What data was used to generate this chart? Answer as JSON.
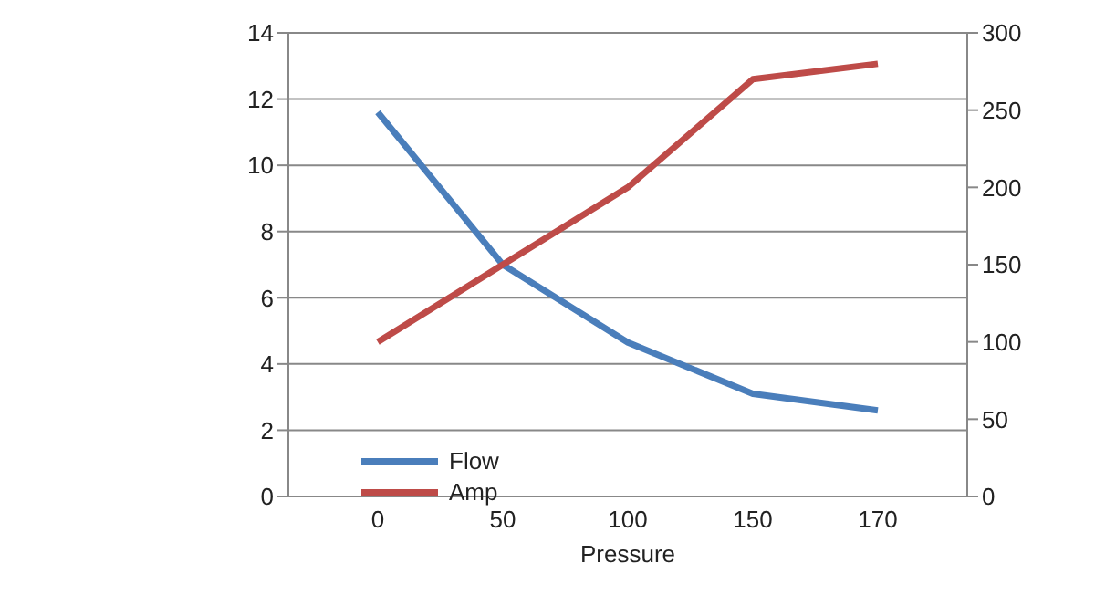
{
  "chart_data": {
    "type": "line",
    "xlabel": "Pressure",
    "categories": [
      "0",
      "50",
      "100",
      "150",
      "170"
    ],
    "series": [
      {
        "name": "Flow",
        "color": "#4a7ebb",
        "values": [
          11.6,
          7.0,
          4.65,
          3.1,
          2.6
        ]
      },
      {
        "name": "Amp",
        "color": "#be4b48",
        "values": [
          100,
          150,
          200,
          270,
          280
        ],
        "axis": "y2"
      }
    ],
    "ylim": [
      0,
      14
    ],
    "yticks": [
      0,
      2,
      4,
      6,
      8,
      10,
      12,
      14
    ],
    "y2lim": [
      0,
      300
    ],
    "y2ticks": [
      0,
      50,
      100,
      150,
      200,
      250,
      300
    ],
    "grid": "y",
    "legend": "bottom",
    "marker": "none",
    "line_style": "solid"
  }
}
